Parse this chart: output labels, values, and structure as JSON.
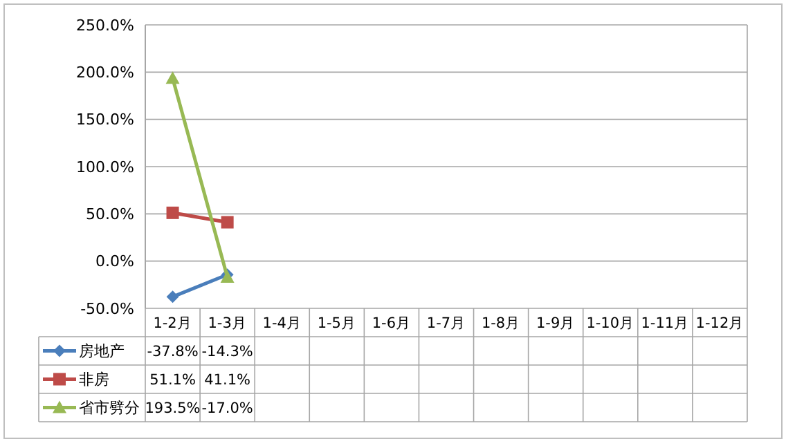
{
  "chart_data": {
    "type": "line",
    "categories": [
      "1-2月",
      "1-3月",
      "1-4月",
      "1-5月",
      "1-6月",
      "1-7月",
      "1-8月",
      "1-9月",
      "1-10月",
      "1-11月",
      "1-12月"
    ],
    "series": [
      {
        "name": "房地产",
        "color": "#4a7ebb",
        "marker": "diamond",
        "values": [
          -37.8,
          -14.3,
          null,
          null,
          null,
          null,
          null,
          null,
          null,
          null,
          null
        ],
        "value_labels": [
          "-37.8%",
          "-14.3%",
          null,
          null,
          null,
          null,
          null,
          null,
          null,
          null,
          null
        ]
      },
      {
        "name": "非房",
        "color": "#be4b48",
        "marker": "square",
        "values": [
          51.1,
          41.1,
          null,
          null,
          null,
          null,
          null,
          null,
          null,
          null,
          null
        ],
        "value_labels": [
          "51.1%",
          "41.1%",
          null,
          null,
          null,
          null,
          null,
          null,
          null,
          null,
          null
        ]
      },
      {
        "name": "省市劈分",
        "color": "#98b954",
        "marker": "triangle",
        "values": [
          193.5,
          -17.0,
          null,
          null,
          null,
          null,
          null,
          null,
          null,
          null,
          null
        ],
        "value_labels": [
          "193.5%",
          "-17.0%",
          null,
          null,
          null,
          null,
          null,
          null,
          null,
          null,
          null
        ]
      }
    ],
    "ylim": [
      -50,
      250
    ],
    "yticks": [
      {
        "value": -50,
        "label": "-50.0%"
      },
      {
        "value": 0,
        "label": "0.0%"
      },
      {
        "value": 50,
        "label": "50.0%"
      },
      {
        "value": 100,
        "label": "100.0%"
      },
      {
        "value": 150,
        "label": "150.0%"
      },
      {
        "value": 200,
        "label": "200.0%"
      },
      {
        "value": 250,
        "label": "250.0%"
      }
    ],
    "grid": "y",
    "legend": "bottom"
  }
}
